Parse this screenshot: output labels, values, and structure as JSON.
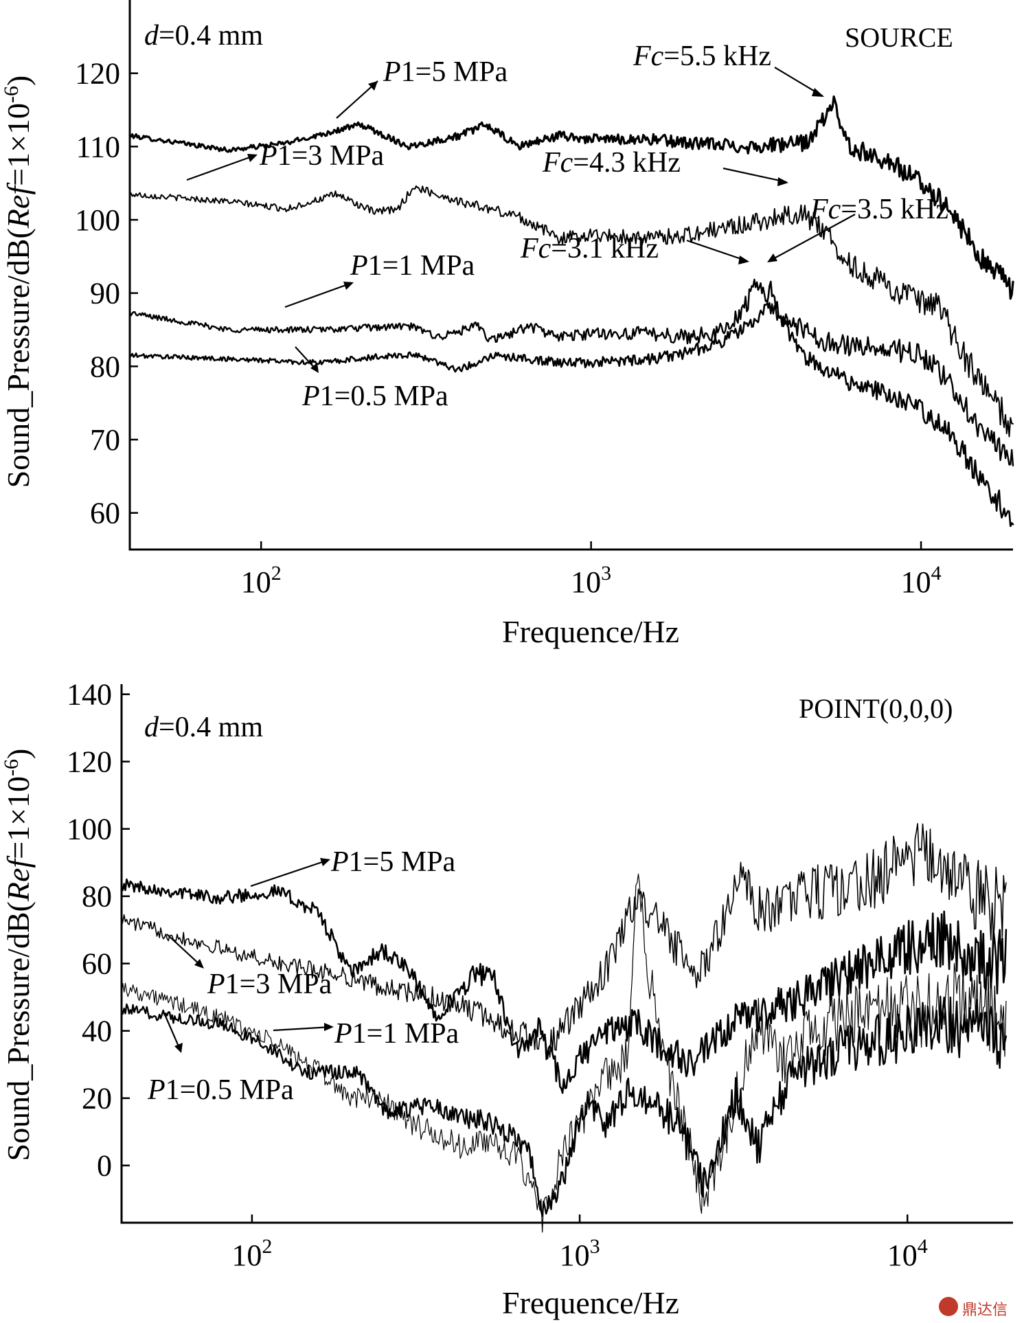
{
  "chart_data": [
    {
      "type": "line",
      "panel": "top",
      "title": "SOURCE",
      "subtitle_prefix_italic": "d",
      "subtitle_rest": "=0.4 mm",
      "xlabel": "Frequence/Hz",
      "ylabel": "Sound_Pressure/dB(Ref=1×10⁻⁶)",
      "xscale": "log",
      "xlim": [
        40,
        19000
      ],
      "ylim": [
        55,
        130
      ],
      "xticks": [
        {
          "value": 100,
          "base": "10",
          "exp": "2"
        },
        {
          "value": 1000,
          "base": "10",
          "exp": "3"
        },
        {
          "value": 10000,
          "base": "10",
          "exp": "4"
        }
      ],
      "yticks": [
        60,
        70,
        80,
        90,
        100,
        110,
        120
      ],
      "series": [
        {
          "name": "P1=5 MPa",
          "noise": 1.2,
          "points": [
            [
              40,
              111.5
            ],
            [
              80,
              109.5
            ],
            [
              120,
              110.5
            ],
            [
              200,
              113
            ],
            [
              280,
              110
            ],
            [
              400,
              111.5
            ],
            [
              480,
              113
            ],
            [
              600,
              110
            ],
            [
              800,
              111.5
            ],
            [
              1000,
              111
            ],
            [
              1500,
              111
            ],
            [
              2000,
              110.5
            ],
            [
              3000,
              110
            ],
            [
              4500,
              110.5
            ],
            [
              5500,
              116
            ],
            [
              6000,
              110
            ],
            [
              8000,
              108
            ],
            [
              10000,
              105
            ],
            [
              12000,
              102
            ],
            [
              15000,
              95
            ],
            [
              19000,
              90.5
            ]
          ]
        },
        {
          "name": "P1=3 MPa",
          "noise": 1.4,
          "points": [
            [
              40,
              103.5
            ],
            [
              80,
              102.5
            ],
            [
              120,
              101.5
            ],
            [
              170,
              103.5
            ],
            [
              220,
              101
            ],
            [
              260,
              101.5
            ],
            [
              290,
              104.5
            ],
            [
              400,
              102.5
            ],
            [
              600,
              100.5
            ],
            [
              800,
              97.5
            ],
            [
              1000,
              98
            ],
            [
              1500,
              97.5
            ],
            [
              2000,
              98
            ],
            [
              3000,
              99.5
            ],
            [
              4300,
              101
            ],
            [
              5000,
              99
            ],
            [
              6000,
              94
            ],
            [
              8000,
              91
            ],
            [
              10000,
              88.5
            ],
            [
              11500,
              88
            ],
            [
              12500,
              84
            ],
            [
              15000,
              78
            ],
            [
              19000,
              71.5
            ]
          ]
        },
        {
          "name": "P1=1 MPa",
          "noise": 1.2,
          "points": [
            [
              40,
              87.3
            ],
            [
              80,
              85
            ],
            [
              150,
              85
            ],
            [
              280,
              85.5
            ],
            [
              350,
              84
            ],
            [
              450,
              85.5
            ],
            [
              500,
              83.5
            ],
            [
              650,
              85.5
            ],
            [
              800,
              84
            ],
            [
              1000,
              84.5
            ],
            [
              1500,
              84.5
            ],
            [
              2000,
              84
            ],
            [
              2600,
              85
            ],
            [
              3000,
              89
            ],
            [
              3100,
              92
            ],
            [
              3500,
              88
            ],
            [
              4000,
              86
            ],
            [
              5000,
              83.5
            ],
            [
              7000,
              82.5
            ],
            [
              9000,
              82
            ],
            [
              10000,
              81.5
            ],
            [
              12000,
              78
            ],
            [
              15000,
              72
            ],
            [
              19000,
              66.5
            ]
          ]
        },
        {
          "name": "P1=0.5 MPa",
          "noise": 1.1,
          "points": [
            [
              40,
              81.5
            ],
            [
              80,
              81
            ],
            [
              150,
              80.5
            ],
            [
              250,
              81.5
            ],
            [
              300,
              81.5
            ],
            [
              400,
              79.5
            ],
            [
              500,
              81.5
            ],
            [
              650,
              81
            ],
            [
              800,
              80.5
            ],
            [
              1000,
              80.5
            ],
            [
              1500,
              81
            ],
            [
              2000,
              82
            ],
            [
              2500,
              83.5
            ],
            [
              3000,
              85.5
            ],
            [
              3300,
              87
            ],
            [
              3500,
              91
            ],
            [
              3800,
              86
            ],
            [
              4500,
              81
            ],
            [
              6000,
              78
            ],
            [
              8000,
              76
            ],
            [
              10000,
              74
            ],
            [
              12000,
              71.5
            ],
            [
              15000,
              65
            ],
            [
              19000,
              59
            ]
          ]
        }
      ],
      "annotations": [
        {
          "label_italic": "P",
          "label_rest": "1=5 MPa",
          "target_series": 0
        },
        {
          "label_italic": "P",
          "label_rest": "1=3 MPa",
          "target_series": 1
        },
        {
          "label_italic": "P",
          "label_rest": "1=1 MPa",
          "target_series": 2
        },
        {
          "label_italic": "P",
          "label_rest": "1=0.5 MPa",
          "target_series": 3
        },
        {
          "label_italic": "Fc",
          "label_rest": "=5.5 kHz"
        },
        {
          "label_italic": "Fc",
          "label_rest": "=4.3 kHz"
        },
        {
          "label_italic": "Fc",
          "label_rest": "=3.5 kHz"
        },
        {
          "label_italic": "Fc",
          "label_rest": "=3.1 kHz"
        }
      ]
    },
    {
      "type": "line",
      "panel": "bottom",
      "title": "POINT(0,0,0)",
      "subtitle_prefix_italic": "d",
      "subtitle_rest": "=0.4 mm",
      "xlabel": "Frequence/Hz",
      "ylabel": "Sound_Pressure/dB(Ref=1×10⁻⁶)",
      "xscale": "log",
      "xlim": [
        40,
        21000
      ],
      "ylim": [
        -17,
        143
      ],
      "xticks": [
        {
          "value": 100,
          "base": "10",
          "exp": "2"
        },
        {
          "value": 1000,
          "base": "10",
          "exp": "3"
        },
        {
          "value": 10000,
          "base": "10",
          "exp": "4"
        }
      ],
      "yticks": [
        0,
        20,
        40,
        60,
        80,
        100,
        120,
        140
      ],
      "series": [
        {
          "name": "P1=5 MPa",
          "noise": 0,
          "points": [
            [
              40,
              83.5
            ],
            [
              80,
              79.5
            ],
            [
              120,
              81.5
            ],
            [
              160,
              75
            ],
            [
              200,
              57
            ],
            [
              250,
              64
            ],
            [
              300,
              58
            ],
            [
              360,
              45
            ],
            [
              420,
              50
            ],
            [
              480,
              57.5
            ],
            [
              550,
              55
            ],
            [
              650,
              33
            ],
            [
              750,
              41
            ],
            [
              900,
              22
            ],
            [
              1000,
              32
            ],
            [
              1200,
              40
            ],
            [
              1500,
              42
            ],
            [
              1800,
              35
            ],
            [
              2200,
              30
            ],
            [
              2700,
              38
            ],
            [
              3200,
              45
            ],
            [
              3800,
              45
            ],
            [
              4500,
              50
            ],
            [
              6000,
              55
            ],
            [
              8000,
              60
            ],
            [
              10000,
              65
            ],
            [
              13000,
              68
            ],
            [
              16000,
              62
            ],
            [
              20000,
              60
            ]
          ]
        },
        {
          "name": "P1=3 MPa",
          "noise": 0,
          "points": [
            [
              40,
              73
            ],
            [
              70,
              66
            ],
            [
              120,
              60
            ],
            [
              180,
              57
            ],
            [
              250,
              53
            ],
            [
              350,
              50
            ],
            [
              450,
              47
            ],
            [
              600,
              41
            ],
            [
              800,
              35
            ],
            [
              1000,
              47
            ],
            [
              1200,
              58
            ],
            [
              1500,
              80
            ],
            [
              1800,
              70
            ],
            [
              2300,
              55
            ],
            [
              2700,
              72
            ],
            [
              3100,
              85
            ],
            [
              3600,
              75
            ],
            [
              4500,
              80
            ],
            [
              6000,
              82
            ],
            [
              8000,
              85
            ],
            [
              10000,
              93
            ],
            [
              13000,
              90
            ],
            [
              16000,
              80
            ],
            [
              20000,
              76
            ]
          ]
        },
        {
          "name": "P1=1 MPa",
          "noise": 0,
          "points": [
            [
              40,
              53
            ],
            [
              80,
              44
            ],
            [
              120,
              36
            ],
            [
              160,
              28
            ],
            [
              200,
              20
            ],
            [
              250,
              20
            ],
            [
              300,
              13
            ],
            [
              380,
              8
            ],
            [
              450,
              5
            ],
            [
              550,
              8
            ],
            [
              650,
              1
            ],
            [
              770,
              -15
            ],
            [
              900,
              5
            ],
            [
              1000,
              12
            ],
            [
              1150,
              25
            ],
            [
              1400,
              32
            ],
            [
              1500,
              90
            ],
            [
              1600,
              60
            ],
            [
              1900,
              25
            ],
            [
              2400,
              -10
            ],
            [
              3000,
              20
            ],
            [
              3500,
              42
            ],
            [
              4200,
              30
            ],
            [
              5000,
              40
            ],
            [
              7000,
              44
            ],
            [
              10000,
              46
            ],
            [
              14000,
              48
            ],
            [
              20000,
              44
            ]
          ]
        },
        {
          "name": "P1=0.5 MPa",
          "noise": 0,
          "points": [
            [
              40,
              46.5
            ],
            [
              80,
              42
            ],
            [
              110,
              36
            ],
            [
              140,
              28
            ],
            [
              180,
              27.5
            ],
            [
              210,
              28
            ],
            [
              260,
              15
            ],
            [
              300,
              17
            ],
            [
              360,
              18
            ],
            [
              420,
              14
            ],
            [
              500,
              14
            ],
            [
              600,
              10
            ],
            [
              700,
              5
            ],
            [
              780,
              -15
            ],
            [
              900,
              -2
            ],
            [
              1050,
              20
            ],
            [
              1200,
              12
            ],
            [
              1400,
              22
            ],
            [
              1600,
              20
            ],
            [
              2000,
              12
            ],
            [
              2400,
              -5
            ],
            [
              3000,
              22
            ],
            [
              3500,
              5
            ],
            [
              4500,
              28
            ],
            [
              6000,
              34
            ],
            [
              9000,
              38
            ],
            [
              13000,
              42
            ],
            [
              20000,
              38
            ]
          ]
        }
      ],
      "annotations": [
        {
          "label_italic": "P",
          "label_rest": "1=5 MPa",
          "target_series": 0
        },
        {
          "label_italic": "P",
          "label_rest": "1=3 MPa",
          "target_series": 1
        },
        {
          "label_italic": "P",
          "label_rest": "1=1 MPa",
          "target_series": 2
        },
        {
          "label_italic": "P",
          "label_rest": "1=0.5 MPa",
          "target_series": 3
        }
      ]
    }
  ],
  "watermark": {
    "text": "鼎达信"
  }
}
